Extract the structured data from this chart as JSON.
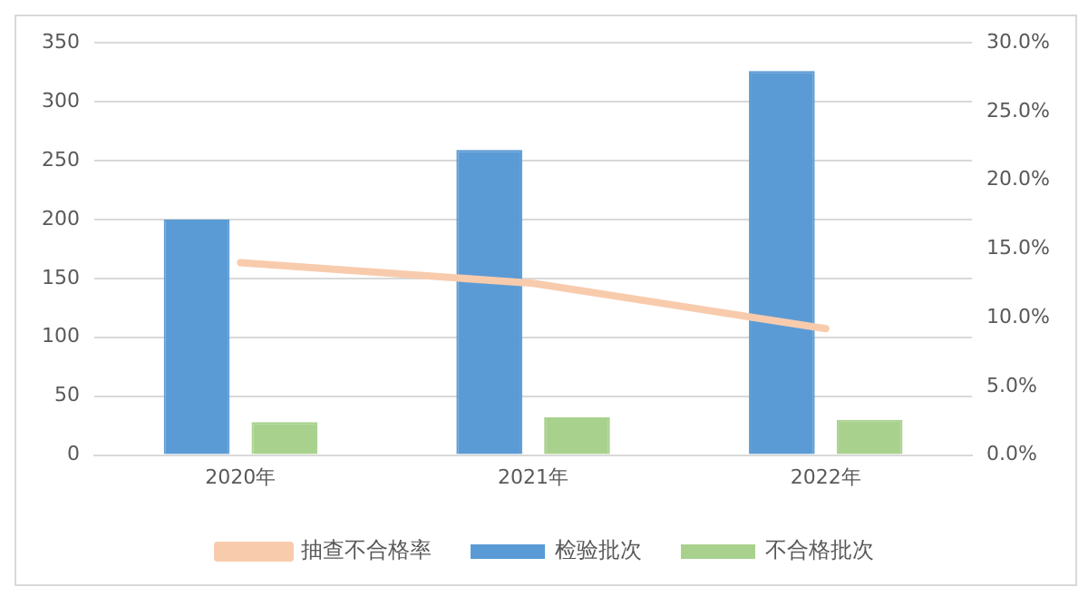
{
  "chart_data": {
    "type": "bar",
    "categories": [
      "2020年",
      "2021年",
      "2022年"
    ],
    "series": [
      {
        "name": "检验批次",
        "color": "#5b9bd5",
        "values": [
          200,
          259,
          326
        ]
      },
      {
        "name": "不合格批次",
        "color": "#a9d18e",
        "values": [
          28,
          32,
          30
        ]
      },
      {
        "name": "抽查不合格率",
        "type": "line",
        "axis": "y2",
        "color": "#f8cbad",
        "values": [
          14.0,
          12.5,
          9.2
        ]
      }
    ],
    "ylim": [
      0,
      350
    ],
    "yticks": [
      0,
      50,
      100,
      150,
      200,
      250,
      300,
      350
    ],
    "y2lim": [
      0,
      30
    ],
    "y2ticks": [
      {
        "value": 0,
        "label": "0.0%"
      },
      {
        "value": 5,
        "label": "5.0%"
      },
      {
        "value": 10,
        "label": "10.0%"
      },
      {
        "value": 15,
        "label": "15.0%"
      },
      {
        "value": 20,
        "label": "20.0%"
      },
      {
        "value": 25,
        "label": "25.0%"
      },
      {
        "value": 30,
        "label": "30.0%"
      }
    ],
    "grid": "y",
    "legend": "bottom",
    "marker": "none"
  }
}
